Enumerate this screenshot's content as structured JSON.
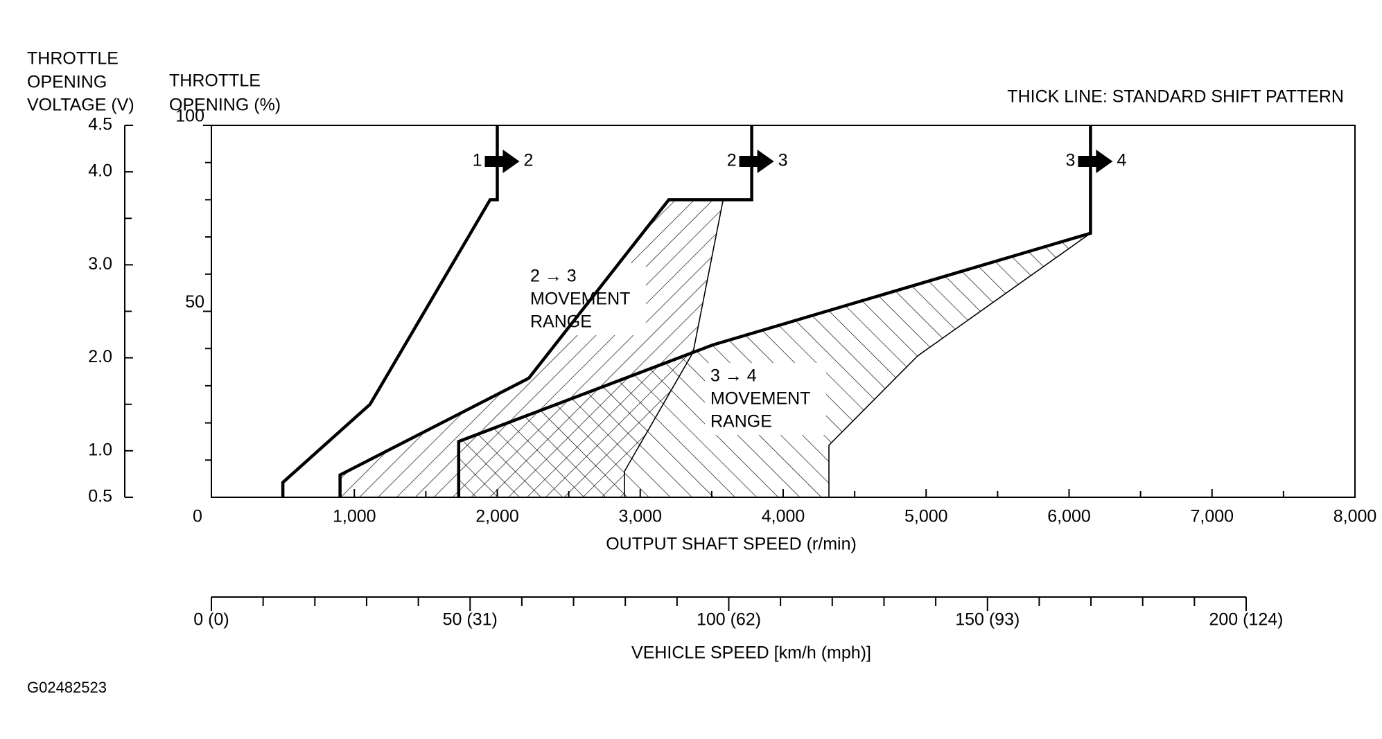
{
  "chart_data": {
    "type": "line",
    "title": [
      "THICK LINE: STANDARD SHIFT PATTERN"
    ],
    "xlabel": "OUTPUT SHAFT SPEED (r/min)",
    "ylabel": [
      "THROTTLE",
      "OPENING (%)"
    ],
    "y2label": [
      "THROTTLE",
      "OPENING",
      "VOLTAGE (V)"
    ],
    "x2label": "VEHICLE SPEED [km/h (mph)]",
    "xlim": [
      0,
      8000
    ],
    "xticks": [
      0,
      {
        "value": 1000,
        "label": "1,000"
      },
      {
        "value": 2000,
        "label": "2,000"
      },
      {
        "value": 3000,
        "label": "3,000"
      },
      {
        "value": 4000,
        "label": "4,000"
      },
      {
        "value": 5000,
        "label": "5,000"
      },
      {
        "value": 6000,
        "label": "6,000"
      },
      {
        "value": 7000,
        "label": "7,000"
      },
      {
        "value": 8000,
        "label": "8,000"
      }
    ],
    "xminorticks": [
      500,
      1500,
      2500,
      3500,
      4500,
      5500,
      6500,
      7500
    ],
    "ylim": [
      0,
      100
    ],
    "yticks": [
      50,
      100
    ],
    "yminorticks": [
      10,
      20,
      30,
      40,
      60,
      70,
      80,
      90
    ],
    "y2lim": [
      0.5,
      4.5
    ],
    "y2ticks": [
      0.5,
      {
        "value": 1,
        "label": "1.0"
      },
      {
        "value": 2,
        "label": "2.0"
      },
      {
        "value": 3,
        "label": "3.0"
      },
      {
        "value": 4,
        "label": "4.0"
      },
      4.5
    ],
    "y2minorticks": [
      1.5,
      2.5,
      3.5
    ],
    "x2lim": [
      0,
      200
    ],
    "x2ticks": [
      {
        "value": 0,
        "label": "0 (0)"
      },
      {
        "value": 50,
        "label": "50 (31)"
      },
      {
        "value": 100,
        "label": "100 (62)"
      },
      {
        "value": 150,
        "label": "150 (93)"
      },
      {
        "value": 200,
        "label": "200 (124)"
      }
    ],
    "x2minorticks": [
      10,
      20,
      30,
      40,
      60,
      70,
      80,
      90,
      110,
      120,
      130,
      140,
      160,
      170,
      180,
      190
    ],
    "series": [
      {
        "from": "1",
        "to": "2",
        "style": "thick",
        "color": "#000000",
        "x": [
          500,
          500,
          1110,
          1950,
          2000,
          2000
        ],
        "values": [
          0,
          4,
          25,
          80,
          80,
          100
        ]
      },
      {
        "from": "2",
        "to": "3",
        "style": "thick",
        "color": "#000000",
        "x": [
          900,
          900,
          2220,
          3200,
          3780,
          3780
        ],
        "values": [
          0,
          6,
          32,
          80,
          80,
          100
        ]
      },
      {
        "style": "thin",
        "color": "#000000",
        "x": [
          3580,
          3370,
          2890,
          2890
        ],
        "values": [
          80,
          39,
          7,
          0
        ]
      },
      {
        "from": "3",
        "to": "4",
        "style": "thick",
        "color": "#000000",
        "x": [
          1730,
          1730,
          3510,
          6150,
          6150
        ],
        "values": [
          0,
          15,
          41,
          71,
          100
        ]
      },
      {
        "style": "thin",
        "color": "#000000",
        "x": [
          6150,
          4940,
          4320,
          4320
        ],
        "values": [
          71,
          38,
          14,
          0
        ]
      }
    ],
    "annotations": [
      [
        "2 → 3",
        "MOVEMENT",
        "RANGE"
      ],
      [
        "3 → 4",
        "MOVEMENT",
        "RANGE"
      ]
    ],
    "figure_id": "G02482523"
  }
}
